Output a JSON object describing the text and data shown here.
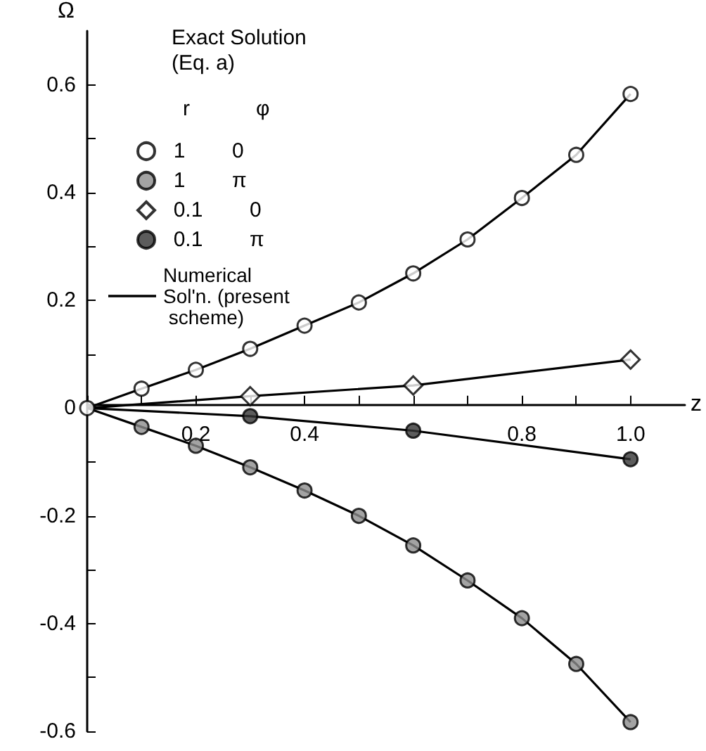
{
  "chart_data": {
    "type": "scatter",
    "legend_title": "Exact Solution (Eq. a)",
    "xlabel": "z",
    "ylabel": "Ω",
    "annotations": [
      "r",
      "φ"
    ],
    "xlim": [
      0,
      1.1
    ],
    "ylim": [
      -0.6,
      0.7
    ],
    "xticks": [
      {
        "value": 0,
        "label": null
      },
      {
        "value": 0.1,
        "label": null
      },
      {
        "value": 0.2,
        "label": "0.2"
      },
      {
        "value": 0.3,
        "label": null
      },
      {
        "value": 0.4,
        "label": "0.4"
      },
      {
        "value": 0.5,
        "label": null
      },
      {
        "value": 0.6,
        "label": null
      },
      {
        "value": 0.7,
        "label": null
      },
      {
        "value": 0.8,
        "label": "0.8"
      },
      {
        "value": 0.9,
        "label": null
      },
      {
        "value": 1.0,
        "label": "1.0"
      }
    ],
    "yticks": [
      -0.6,
      {
        "value": -0.5,
        "label": null
      },
      -0.4,
      {
        "value": -0.3,
        "label": null
      },
      -0.2,
      {
        "value": -0.1,
        "label": null
      },
      0,
      {
        "value": 0.1,
        "label": null
      },
      0.2,
      {
        "value": 0.3,
        "label": null
      },
      0.4,
      {
        "value": 0.5,
        "label": null
      },
      0.6
    ],
    "legend": "top left",
    "grid": false,
    "series": [
      {
        "name": "1  0",
        "type": "scatter",
        "marker": "circle",
        "color": "#ffffff",
        "x": [
          0,
          0.1,
          0.2,
          0.3,
          0.4,
          0.5,
          0.6,
          0.7,
          0.8,
          0.9,
          1.0
        ],
        "values": [
          0,
          0.036,
          0.071,
          0.11,
          0.153,
          0.196,
          0.25,
          0.313,
          0.39,
          0.47,
          0.583
        ]
      },
      {
        "name": "1  π",
        "type": "scatter",
        "marker": "circle",
        "color": "#8c8c8c",
        "x": [
          0.1,
          0.2,
          0.3,
          0.4,
          0.5,
          0.6,
          0.7,
          0.8,
          0.9,
          1.0
        ],
        "values": [
          -0.035,
          -0.07,
          -0.11,
          -0.153,
          -0.2,
          -0.255,
          -0.32,
          -0.39,
          -0.475,
          -0.583
        ]
      },
      {
        "name": "0.1  0",
        "type": "scatter",
        "marker": "diamond",
        "color": "#ffffff",
        "x": [
          0.3,
          0.6,
          1.0
        ],
        "values": [
          0.022,
          0.042,
          0.09
        ]
      },
      {
        "name": "0.1  π",
        "type": "scatter",
        "marker": "circle",
        "color": "#333333",
        "x": [
          0.3,
          0.6,
          1.0
        ],
        "values": [
          -0.015,
          -0.042,
          -0.095
        ]
      },
      {
        "name": "Numerical Sol'n. (present scheme)",
        "type": "line",
        "line_style": "solid",
        "marker": "none",
        "color": "#000000",
        "x": [
          0,
          0.1,
          0.2,
          0.3,
          0.4,
          0.5,
          0.6,
          0.7,
          0.8,
          0.9,
          1.0
        ],
        "values": [
          0,
          0.036,
          0.071,
          0.11,
          0.153,
          0.196,
          0.25,
          0.313,
          0.39,
          0.47,
          0.583
        ]
      },
      {
        "type": "line",
        "line_style": "solid",
        "marker": "none",
        "color": "#000000",
        "x": [
          0,
          0.1,
          0.2,
          0.3,
          0.4,
          0.5,
          0.6,
          0.7,
          0.8,
          0.9,
          1.0
        ],
        "values": [
          0,
          -0.035,
          -0.07,
          -0.11,
          -0.153,
          -0.2,
          -0.255,
          -0.32,
          -0.39,
          -0.475,
          -0.583
        ]
      },
      {
        "type": "line",
        "line_style": "solid",
        "marker": "none",
        "color": "#000000",
        "x": [
          0,
          0.3,
          0.6,
          1.0
        ],
        "values": [
          0,
          0.022,
          0.042,
          0.09
        ]
      },
      {
        "type": "line",
        "line_style": "solid",
        "marker": "none",
        "color": "#000000",
        "x": [
          0,
          0.3,
          0.6,
          1.0
        ],
        "values": [
          0,
          -0.015,
          -0.042,
          -0.095
        ]
      }
    ]
  }
}
